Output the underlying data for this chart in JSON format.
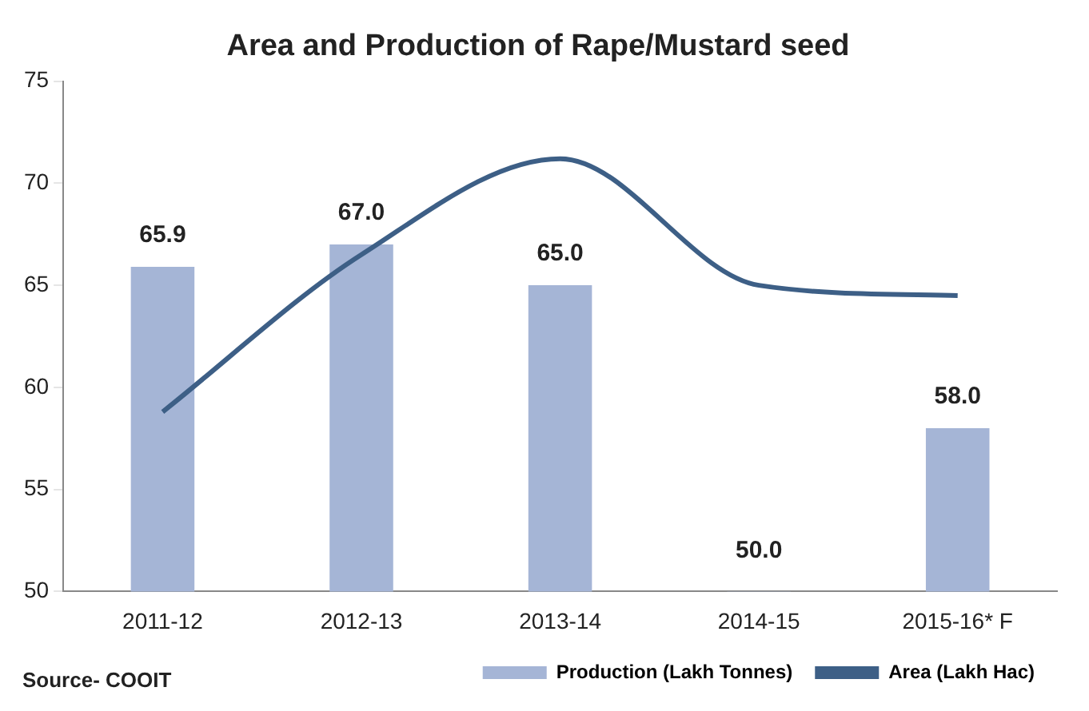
{
  "chart_data": {
    "type": "bar",
    "title": "Area and Production of Rape/Mustard seed",
    "categories": [
      "2011-12",
      "2012-13",
      "2013-14",
      "2014-15",
      "2015-16* F"
    ],
    "series": [
      {
        "name": "Production (Lakh Tonnes)",
        "color": "#a5b5d6",
        "values": [
          65.9,
          67.0,
          65.0,
          50.0,
          58.0
        ],
        "value_labels": [
          "65.9",
          "67.0",
          "65.0",
          "50.0",
          "58.0"
        ]
      },
      {
        "type": "line",
        "name": "Area (Lakh Hac)",
        "color": "#3d5f86",
        "values": [
          58.8,
          66.5,
          71.2,
          65.0,
          64.5
        ]
      }
    ],
    "ylim": [
      50,
      75
    ],
    "yticks": [
      50,
      55,
      60,
      65,
      70,
      75
    ],
    "grid": false,
    "legend": "bottom",
    "annotations": [
      "Source- COOIT"
    ]
  }
}
